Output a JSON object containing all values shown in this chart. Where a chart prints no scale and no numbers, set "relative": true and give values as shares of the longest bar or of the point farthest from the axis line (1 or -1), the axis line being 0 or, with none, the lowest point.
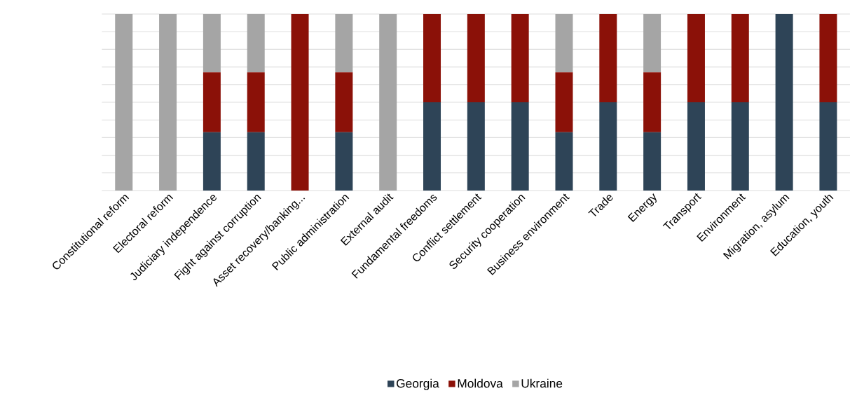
{
  "chart_data": {
    "type": "bar",
    "stacked": true,
    "relative": true,
    "grid": "y",
    "legend": "bottom",
    "tick_labels": "x",
    "categories": [
      "Constitutional reform",
      "Electoral reform",
      "Judiciary independence",
      "Fight against corruption",
      "Asset recovery/banking...",
      "Public administration",
      "External audit",
      "Fundamental freedoms",
      "Conflict settlement",
      "Security cooperation",
      "Business environment",
      "Trade",
      "Energy",
      "Transport",
      "Environment",
      "Migration, asylum",
      "Education, youth"
    ],
    "series": [
      {
        "name": "Georgia",
        "color": "#2e4457",
        "values": [
          0,
          0,
          0.33,
          0.33,
          0,
          0.33,
          0,
          0.5,
          0.5,
          0.5,
          0.33,
          0.5,
          0.33,
          0.5,
          0.5,
          1,
          0.5
        ]
      },
      {
        "name": "Moldova",
        "color": "#8b1108",
        "values": [
          0,
          0,
          0.34,
          0.34,
          1,
          0.34,
          0,
          0.5,
          0.5,
          0.5,
          0.34,
          0.5,
          0.34,
          0.5,
          0.5,
          0,
          0.5
        ]
      },
      {
        "name": "Ukraine",
        "color": "#a5a5a5",
        "values": [
          1,
          1,
          0.33,
          0.33,
          0,
          0.33,
          1,
          0,
          0,
          0,
          0.33,
          0,
          0.33,
          0,
          0,
          0,
          0
        ]
      }
    ]
  }
}
